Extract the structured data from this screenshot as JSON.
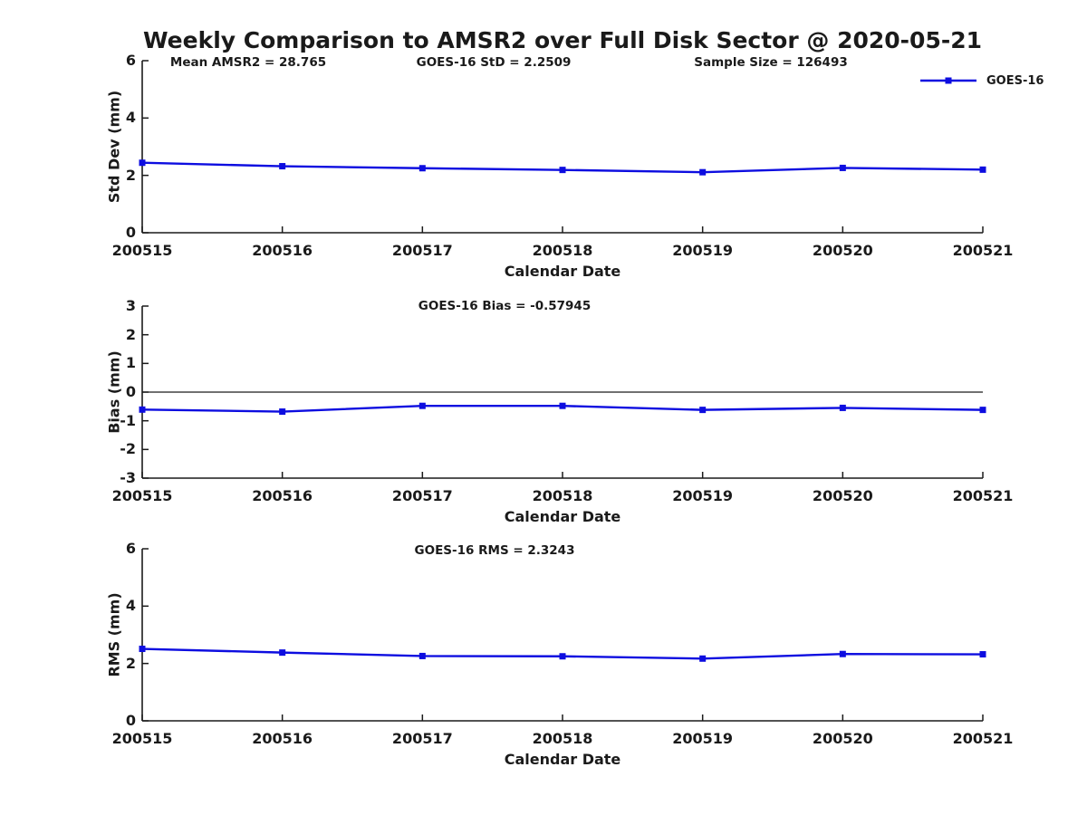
{
  "title": "Weekly Comparison to AMSR2 over Full Disk Sector @ 2020-05-21",
  "legend": {
    "label": "GOES-16"
  },
  "colors": {
    "series": "#0d0de0",
    "axis": "#1a1a1a",
    "zero_line": "#1a1a1a",
    "text": "#1a1a1a",
    "background": "#ffffff"
  },
  "chart_data": [
    {
      "type": "line",
      "title": "",
      "annotations": [
        "Mean AMSR2 = 28.765",
        "GOES-16 StD = 2.2509",
        "Sample Size = 126493"
      ],
      "categories": [
        "200515",
        "200516",
        "200517",
        "200518",
        "200519",
        "200520",
        "200521"
      ],
      "series": [
        {
          "name": "GOES-16",
          "values": [
            2.44,
            2.32,
            2.25,
            2.19,
            2.11,
            2.26,
            2.2
          ]
        }
      ],
      "xlabel": "Calendar Date",
      "ylabel": "Std Dev (mm)",
      "ylim": [
        0,
        6
      ],
      "yticks": [
        0,
        2,
        4,
        6
      ],
      "grid": false,
      "zero_line": false,
      "legend_position": "northeast-outside-top"
    },
    {
      "type": "line",
      "title": "",
      "annotations": [
        "GOES-16 Bias  = -0.57945"
      ],
      "categories": [
        "200515",
        "200516",
        "200517",
        "200518",
        "200519",
        "200520",
        "200521"
      ],
      "series": [
        {
          "name": "GOES-16",
          "values": [
            -0.61,
            -0.68,
            -0.48,
            -0.48,
            -0.62,
            -0.55,
            -0.62
          ]
        }
      ],
      "xlabel": "Calendar Date",
      "ylabel": "Bias (mm)",
      "ylim": [
        -3,
        3
      ],
      "yticks": [
        -3,
        -2,
        -1,
        0,
        1,
        2,
        3
      ],
      "grid": false,
      "zero_line": true,
      "legend_position": "none"
    },
    {
      "type": "line",
      "title": "",
      "annotations": [
        "GOES-16 RMS = 2.3243"
      ],
      "categories": [
        "200515",
        "200516",
        "200517",
        "200518",
        "200519",
        "200520",
        "200521"
      ],
      "series": [
        {
          "name": "GOES-16",
          "values": [
            2.51,
            2.38,
            2.26,
            2.25,
            2.17,
            2.33,
            2.32
          ]
        }
      ],
      "xlabel": "Calendar Date",
      "ylabel": "RMS (mm)",
      "ylim": [
        0,
        6
      ],
      "yticks": [
        0,
        2,
        4,
        6
      ],
      "grid": false,
      "zero_line": false,
      "legend_position": "none"
    }
  ]
}
